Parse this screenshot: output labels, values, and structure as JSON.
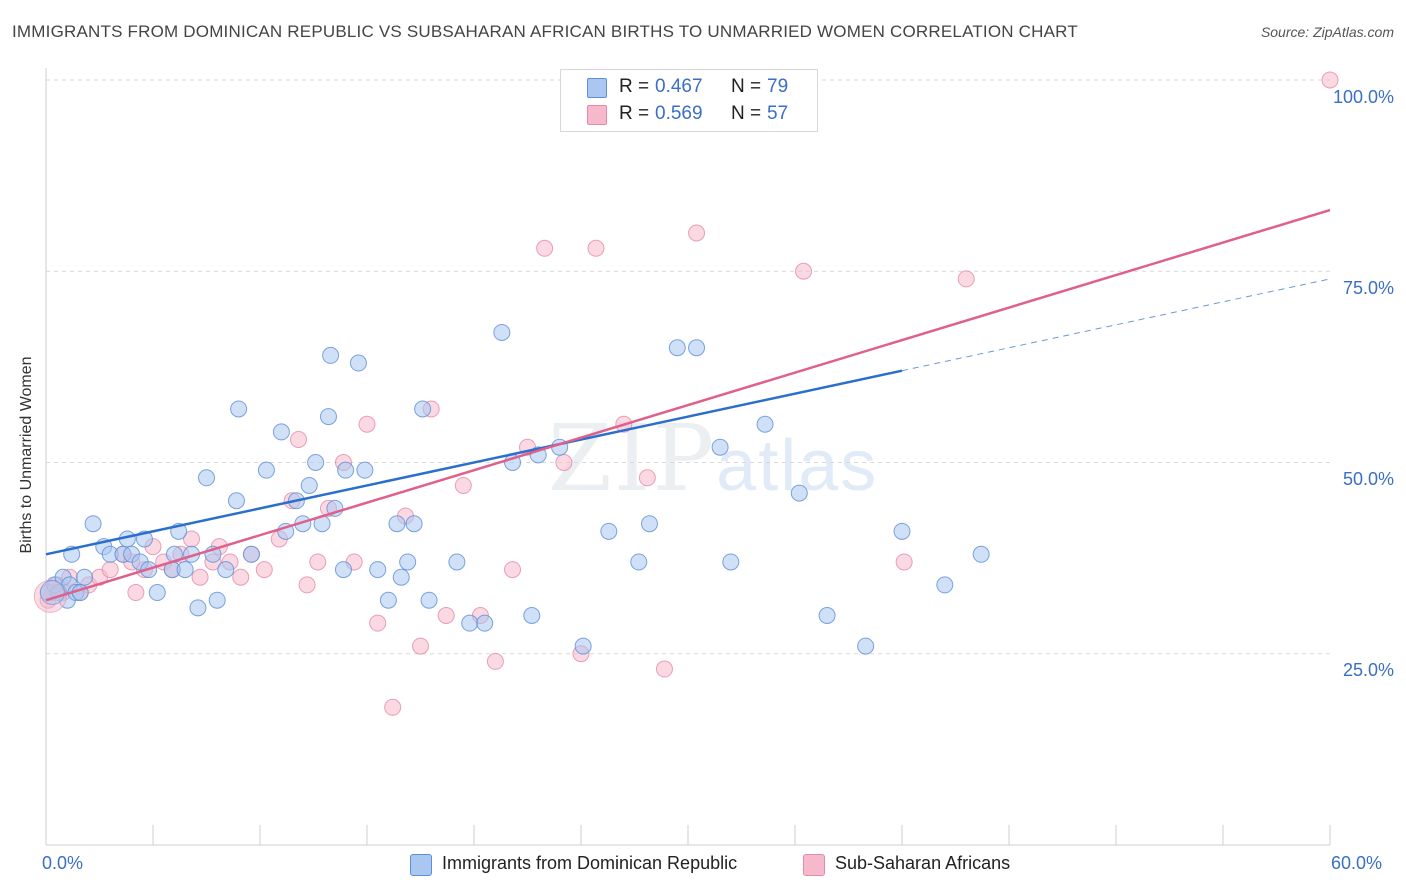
{
  "header": {
    "title": "IMMIGRANTS FROM DOMINICAN REPUBLIC VS SUBSAHARAN AFRICAN BIRTHS TO UNMARRIED WOMEN CORRELATION CHART",
    "source": "Source: ZipAtlas.com"
  },
  "watermark": {
    "zip": "ZIP",
    "atlas": "atlas"
  },
  "legend": {
    "r_label": "R =",
    "n_label": "N =",
    "series1": {
      "r": "0.467",
      "n": "79"
    },
    "series2": {
      "r": "0.569",
      "n": "57"
    }
  },
  "colors": {
    "blue_fill": "#a9c7f0",
    "blue_stroke": "#5b8fd6",
    "blue_line": "#2b6fcc",
    "pink_fill": "#f6b9cc",
    "pink_stroke": "#e58aa8",
    "pink_line": "#e0608c",
    "grid": "#d9d9d9",
    "axis_label": "#3a6fc4"
  },
  "chart_data": {
    "type": "scatter",
    "title": "IMMIGRANTS FROM DOMINICAN REPUBLIC VS SUBSAHARAN AFRICAN BIRTHS TO UNMARRIED WOMEN CORRELATION CHART",
    "xlabel": "",
    "ylabel": "Births to Unmarried Women",
    "xlim": [
      0,
      60
    ],
    "ylim": [
      0,
      100
    ],
    "x_tick_labels": [
      "0.0%",
      "60.0%"
    ],
    "y_tick_labels": [
      "25.0%",
      "50.0%",
      "75.0%",
      "100.0%"
    ],
    "y_ticks": [
      25,
      50,
      75,
      100
    ],
    "grid": true,
    "legend_placement": "top-center",
    "series": [
      {
        "name": "Immigrants from Dominican Republic",
        "color": "#a9c7f0",
        "trend": {
          "x": [
            0,
            40
          ],
          "y": [
            38,
            62
          ],
          "dashed_extension_to": [
            60,
            74
          ]
        },
        "points": [
          [
            0.1,
            33
          ],
          [
            0.4,
            34
          ],
          [
            0.6,
            33
          ],
          [
            0.8,
            35
          ],
          [
            1.0,
            32
          ],
          [
            1.1,
            34
          ],
          [
            1.2,
            38
          ],
          [
            1.4,
            33
          ],
          [
            1.6,
            33
          ],
          [
            1.8,
            35
          ],
          [
            2.2,
            42
          ],
          [
            2.7,
            39
          ],
          [
            3.0,
            38
          ],
          [
            3.6,
            38
          ],
          [
            3.8,
            40
          ],
          [
            4.0,
            38
          ],
          [
            4.4,
            37
          ],
          [
            4.6,
            40
          ],
          [
            4.8,
            36
          ],
          [
            5.2,
            33
          ],
          [
            5.9,
            36
          ],
          [
            6.0,
            38
          ],
          [
            6.2,
            41
          ],
          [
            6.5,
            36
          ],
          [
            6.8,
            38
          ],
          [
            7.1,
            31
          ],
          [
            7.5,
            48
          ],
          [
            7.8,
            38
          ],
          [
            8.0,
            32
          ],
          [
            8.4,
            36
          ],
          [
            8.9,
            45
          ],
          [
            9.0,
            57
          ],
          [
            9.6,
            38
          ],
          [
            10.3,
            49
          ],
          [
            11.0,
            54
          ],
          [
            11.2,
            41
          ],
          [
            11.7,
            45
          ],
          [
            12.0,
            42
          ],
          [
            12.3,
            47
          ],
          [
            12.6,
            50
          ],
          [
            12.9,
            42
          ],
          [
            13.2,
            56
          ],
          [
            13.3,
            64
          ],
          [
            13.5,
            44
          ],
          [
            13.9,
            36
          ],
          [
            14.0,
            49
          ],
          [
            14.6,
            63
          ],
          [
            14.9,
            49
          ],
          [
            15.5,
            36
          ],
          [
            16.0,
            32
          ],
          [
            16.4,
            42
          ],
          [
            16.6,
            35
          ],
          [
            16.9,
            37
          ],
          [
            17.2,
            42
          ],
          [
            17.6,
            57
          ],
          [
            17.9,
            32
          ],
          [
            19.2,
            37
          ],
          [
            19.8,
            29
          ],
          [
            20.5,
            29
          ],
          [
            21.3,
            67
          ],
          [
            21.8,
            50
          ],
          [
            22.7,
            30
          ],
          [
            23.0,
            51
          ],
          [
            24.0,
            52
          ],
          [
            25.1,
            26
          ],
          [
            26.3,
            41
          ],
          [
            27.7,
            37
          ],
          [
            28.2,
            42
          ],
          [
            29.5,
            65
          ],
          [
            30.4,
            65
          ],
          [
            31.5,
            52
          ],
          [
            32.0,
            37
          ],
          [
            33.6,
            55
          ],
          [
            35.2,
            46
          ],
          [
            36.5,
            30
          ],
          [
            38.3,
            26
          ],
          [
            40.0,
            41
          ],
          [
            42.0,
            34
          ],
          [
            43.7,
            38
          ]
        ]
      },
      {
        "name": "Sub-Saharan Africans",
        "color": "#f6b9cc",
        "trend": {
          "x": [
            0,
            60
          ],
          "y": [
            32,
            83
          ]
        },
        "points": [
          [
            0.1,
            32
          ],
          [
            0.3,
            33
          ],
          [
            0.5,
            34
          ],
          [
            0.8,
            33
          ],
          [
            1.1,
            35
          ],
          [
            1.6,
            33
          ],
          [
            2.0,
            34
          ],
          [
            2.5,
            35
          ],
          [
            3.0,
            36
          ],
          [
            3.6,
            38
          ],
          [
            4.0,
            37
          ],
          [
            4.2,
            33
          ],
          [
            4.6,
            36
          ],
          [
            5.0,
            39
          ],
          [
            5.5,
            37
          ],
          [
            5.9,
            36
          ],
          [
            6.3,
            38
          ],
          [
            6.8,
            40
          ],
          [
            7.2,
            35
          ],
          [
            7.8,
            37
          ],
          [
            8.1,
            39
          ],
          [
            8.6,
            37
          ],
          [
            9.1,
            35
          ],
          [
            9.6,
            38
          ],
          [
            10.2,
            36
          ],
          [
            10.9,
            40
          ],
          [
            11.5,
            45
          ],
          [
            11.8,
            53
          ],
          [
            12.2,
            34
          ],
          [
            12.7,
            37
          ],
          [
            13.2,
            44
          ],
          [
            13.9,
            50
          ],
          [
            14.4,
            37
          ],
          [
            15.0,
            55
          ],
          [
            15.5,
            29
          ],
          [
            16.2,
            18
          ],
          [
            16.8,
            43
          ],
          [
            17.5,
            26
          ],
          [
            18.0,
            57
          ],
          [
            18.7,
            30
          ],
          [
            19.5,
            47
          ],
          [
            20.3,
            30
          ],
          [
            21.0,
            24
          ],
          [
            21.8,
            36
          ],
          [
            22.5,
            52
          ],
          [
            23.3,
            78
          ],
          [
            24.2,
            50
          ],
          [
            25.0,
            25
          ],
          [
            25.7,
            78
          ],
          [
            27.0,
            55
          ],
          [
            28.1,
            48
          ],
          [
            28.9,
            23
          ],
          [
            30.4,
            80
          ],
          [
            35.4,
            75
          ],
          [
            40.1,
            37
          ],
          [
            43.0,
            74
          ],
          [
            60.0,
            100
          ]
        ]
      }
    ]
  }
}
